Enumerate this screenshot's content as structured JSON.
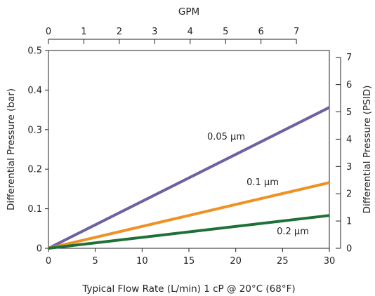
{
  "chart_data": {
    "type": "line",
    "xlabel": "Typical Flow Rate (L/min) 1 cP @ 20°C (68°F)",
    "ylabel": "Differential Pressure (bar)",
    "y2label": "Differential Pressure (PSID)",
    "x2label": "GPM",
    "xlim": [
      0,
      30
    ],
    "ylim": [
      0,
      0.5
    ],
    "y2lim": [
      0,
      7.25
    ],
    "x2lim": [
      0,
      7.93
    ],
    "x_ticks": [
      "0",
      "5",
      "10",
      "15",
      "20",
      "25",
      "30"
    ],
    "y_ticks": [
      "0",
      "0.1",
      "0.2",
      "0.3",
      "0.4",
      "0.5"
    ],
    "y2_ticks": [
      "0",
      "1",
      "2",
      "3",
      "4",
      "5",
      "6",
      "7"
    ],
    "x2_ticks": [
      "0",
      "1",
      "2",
      "3",
      "4",
      "5",
      "6",
      "7"
    ],
    "grid": false,
    "series": [
      {
        "name": "0.05 µm",
        "color": "#6a62a3",
        "x": [
          0,
          30
        ],
        "y": [
          0,
          0.356
        ]
      },
      {
        "name": "0.1 µm",
        "color": "#ef9124",
        "x": [
          0,
          30
        ],
        "y": [
          0,
          0.166
        ]
      },
      {
        "name": "0.2 µm",
        "color": "#1d7038",
        "x": [
          0,
          30
        ],
        "y": [
          0,
          0.083
        ]
      }
    ]
  }
}
